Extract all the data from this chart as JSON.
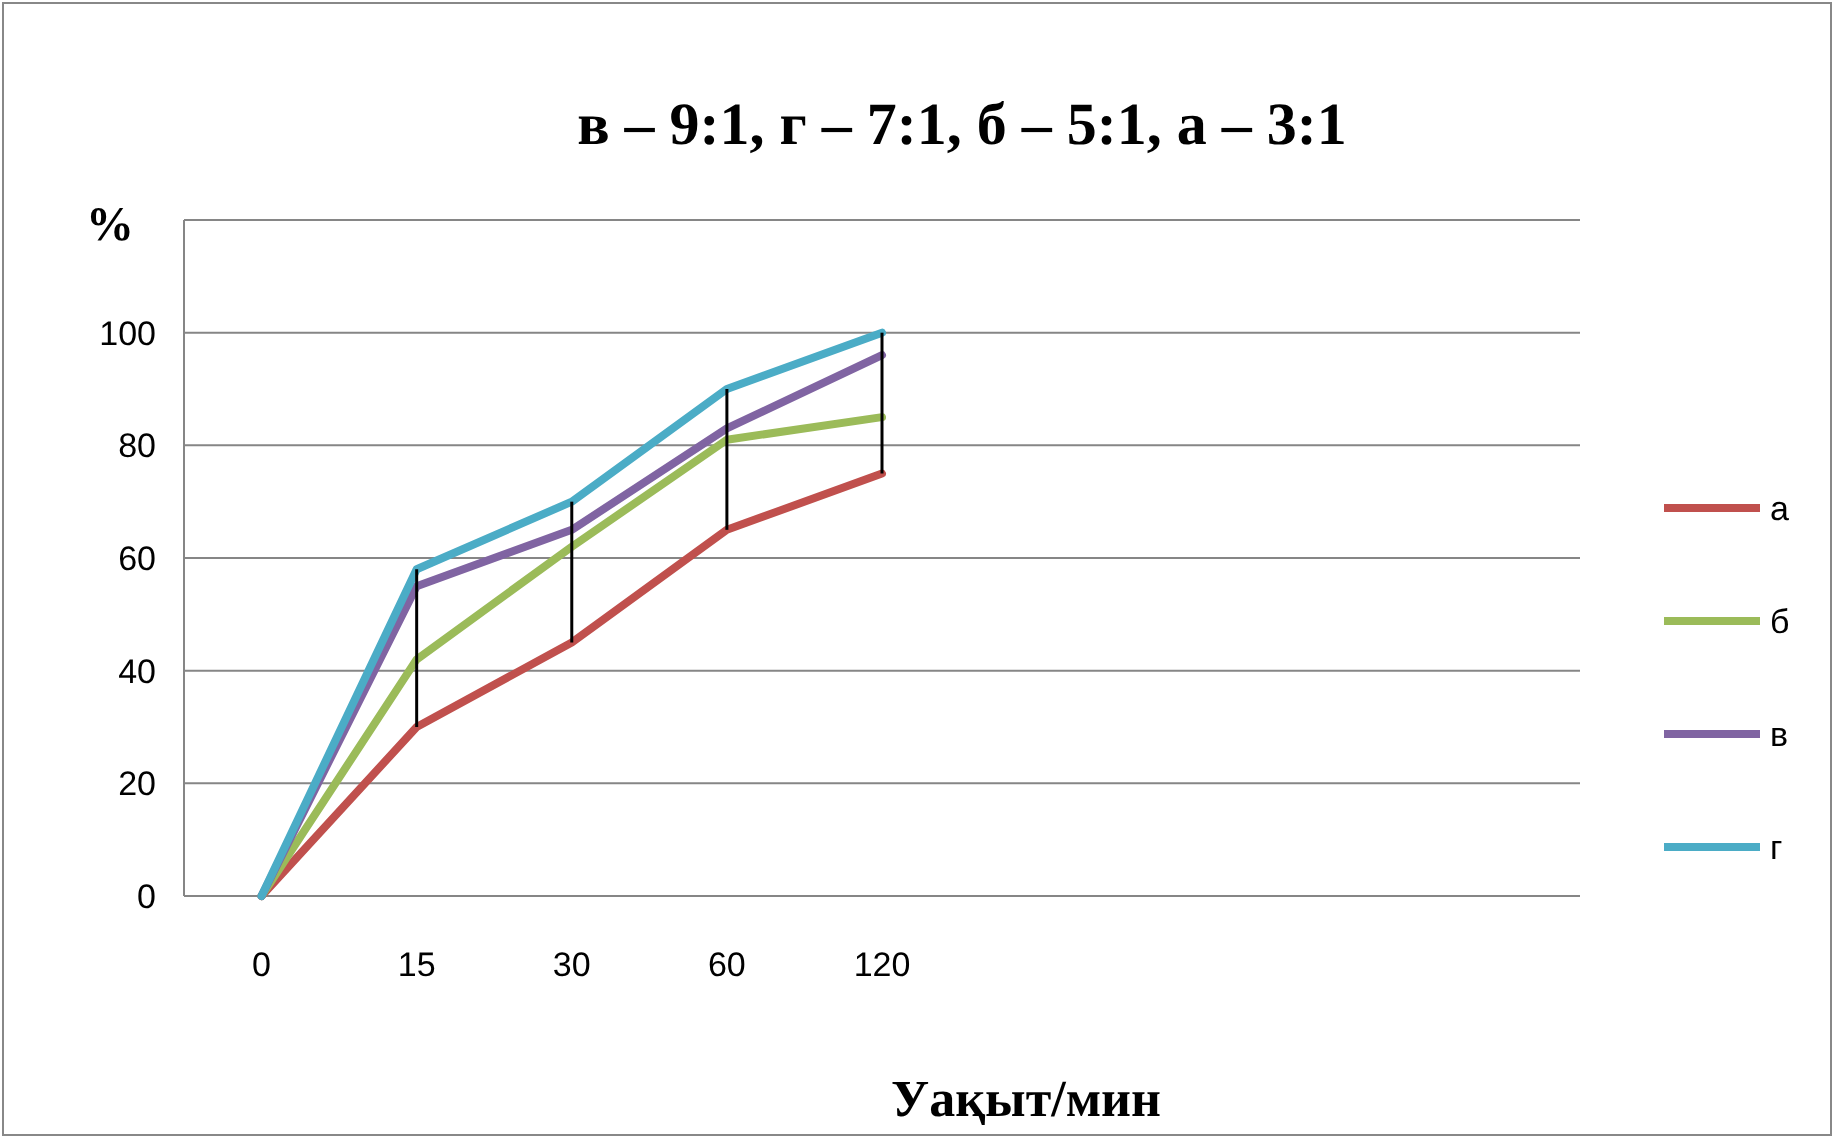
{
  "chart_data": {
    "type": "line",
    "title": "в – 9:1, г – 7:1, б – 5:1,  а – 3:1",
    "xlabel": "Уақыт/мин",
    "ylabel": "%",
    "categories": [
      "0",
      "15",
      "30",
      "60",
      "120",
      null,
      null,
      null,
      null
    ],
    "series": [
      {
        "name": "а",
        "color": "#c0504d",
        "values": [
          0,
          30,
          45,
          65,
          75,
          null,
          null,
          null,
          null
        ]
      },
      {
        "name": "б",
        "color": "#9bbb59",
        "values": [
          0,
          42,
          62,
          81,
          85,
          null,
          null,
          null,
          null
        ]
      },
      {
        "name": "в",
        "color": "#8064a2",
        "values": [
          0,
          55,
          65,
          83,
          96,
          null,
          null,
          null,
          null
        ]
      },
      {
        "name": "г",
        "color": "#4bacc6",
        "values": [
          0,
          58,
          70,
          90,
          100,
          null,
          null,
          null,
          null
        ],
        "errors": [
          null,
          [
            30,
            58
          ],
          [
            45,
            70
          ],
          [
            65,
            90
          ],
          [
            75,
            100
          ],
          null,
          null,
          null,
          null
        ]
      }
    ],
    "ylim": [
      0,
      120
    ],
    "yticks": [
      0,
      20,
      40,
      60,
      80,
      100,
      {
        "value": 120,
        "label": null
      }
    ],
    "grid": "y",
    "legend": "right",
    "marker": "none",
    "line_style": "solid"
  }
}
